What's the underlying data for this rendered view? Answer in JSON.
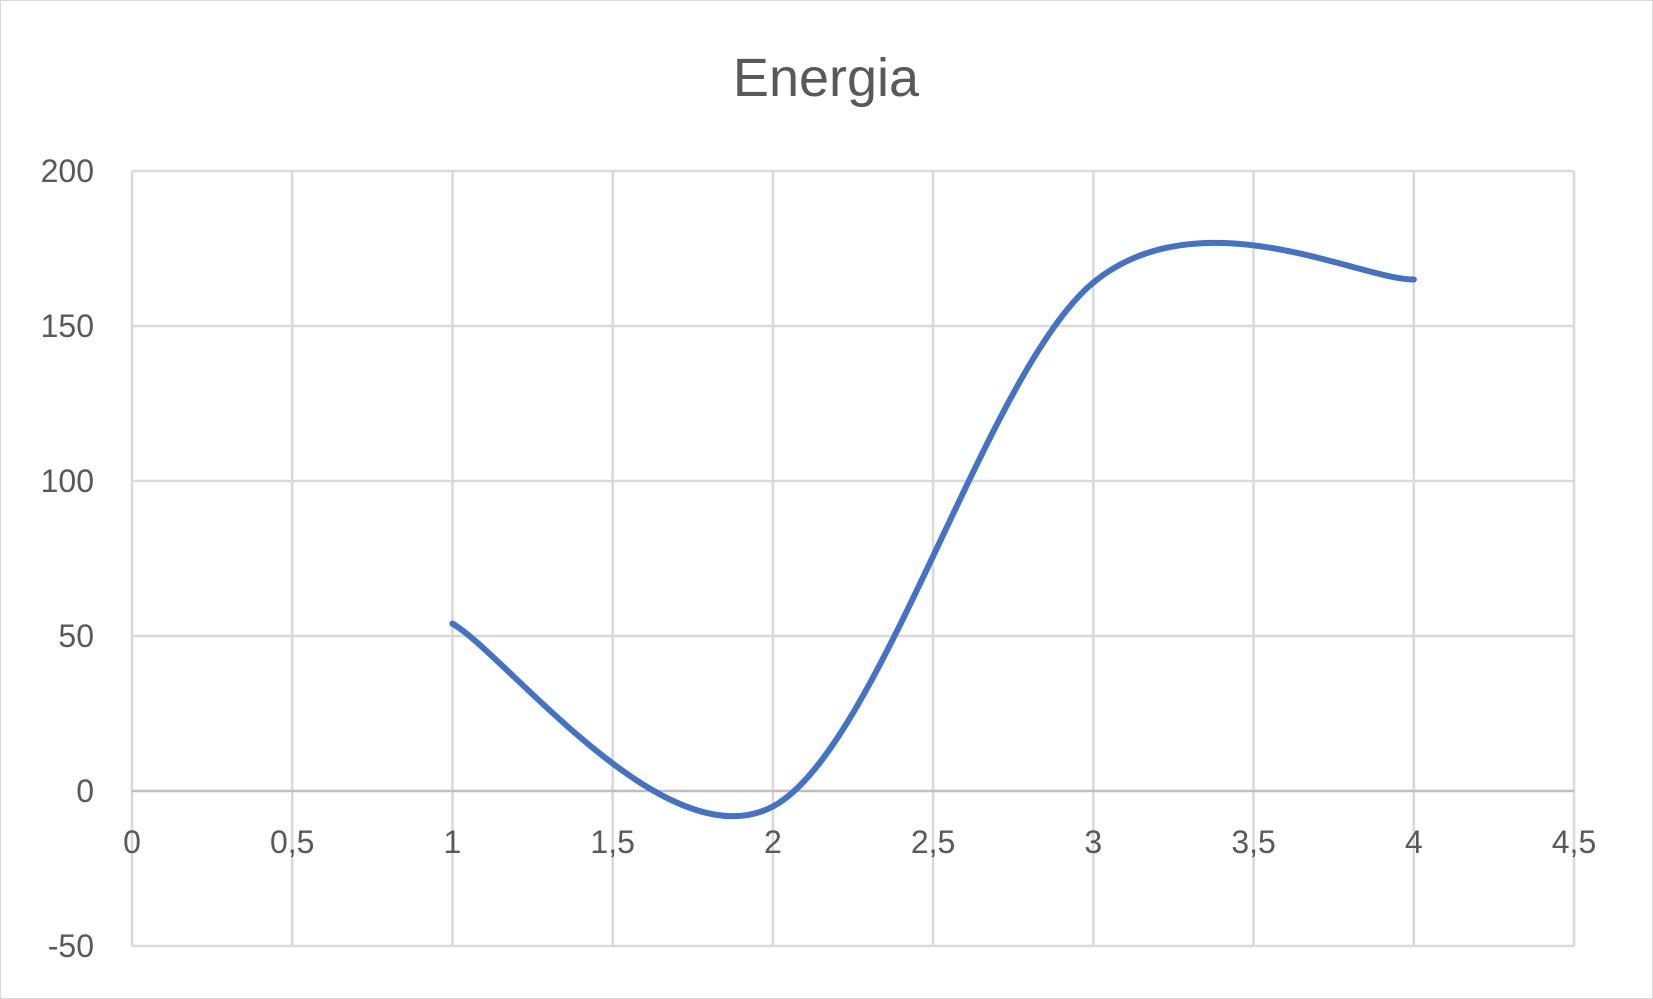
{
  "chart_data": {
    "type": "line",
    "title": "Energia",
    "xlabel": "",
    "ylabel": "",
    "xlim": [
      0,
      4.5
    ],
    "ylim": [
      -50,
      200
    ],
    "x_ticks": [
      0,
      0.5,
      1,
      1.5,
      2,
      2.5,
      3,
      3.5,
      4,
      4.5
    ],
    "x_tick_labels": [
      "0",
      "0,5",
      "1",
      "1,5",
      "2",
      "2,5",
      "3",
      "3,5",
      "4",
      "4,5"
    ],
    "y_ticks": [
      -50,
      0,
      50,
      100,
      150,
      200
    ],
    "y_tick_labels": [
      "-50",
      "0",
      "50",
      "100",
      "150",
      "200"
    ],
    "grid": true,
    "legend": "none",
    "smooth": true,
    "series": [
      {
        "color": "#4472c4",
        "x": [
          1,
          2,
          3,
          4
        ],
        "y": [
          54,
          -5,
          164,
          165
        ]
      }
    ]
  }
}
